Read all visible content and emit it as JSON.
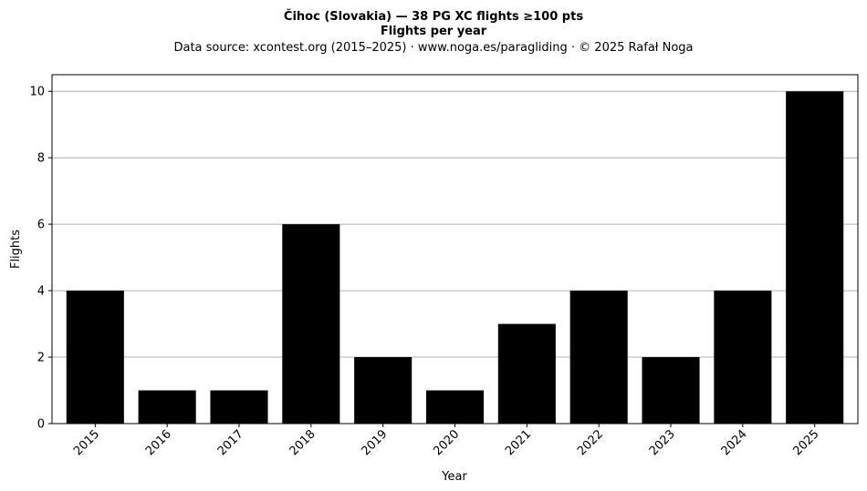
{
  "chart_data": {
    "type": "bar",
    "title": "Čihoc (Slovakia)  —  38 PG XC flights ≥100 pts",
    "title_line2": "Flights per year",
    "subtitle": "Data source: xcontest.org (2015–2025)  ·  www.noga.es/paragliding  ·  © 2025 Rafał Noga",
    "xlabel": "Year",
    "ylabel": "Flights",
    "categories": [
      "2015",
      "2016",
      "2017",
      "2018",
      "2019",
      "2020",
      "2021",
      "2022",
      "2023",
      "2024",
      "2025"
    ],
    "values": [
      4,
      1,
      1,
      6,
      2,
      1,
      3,
      4,
      2,
      4,
      10
    ],
    "ylim": [
      0,
      10.5
    ],
    "yticks": [
      0,
      2,
      4,
      6,
      8,
      10
    ],
    "grid": "y",
    "bar_color": "#000000",
    "grid_color": "#b0b0b0"
  }
}
